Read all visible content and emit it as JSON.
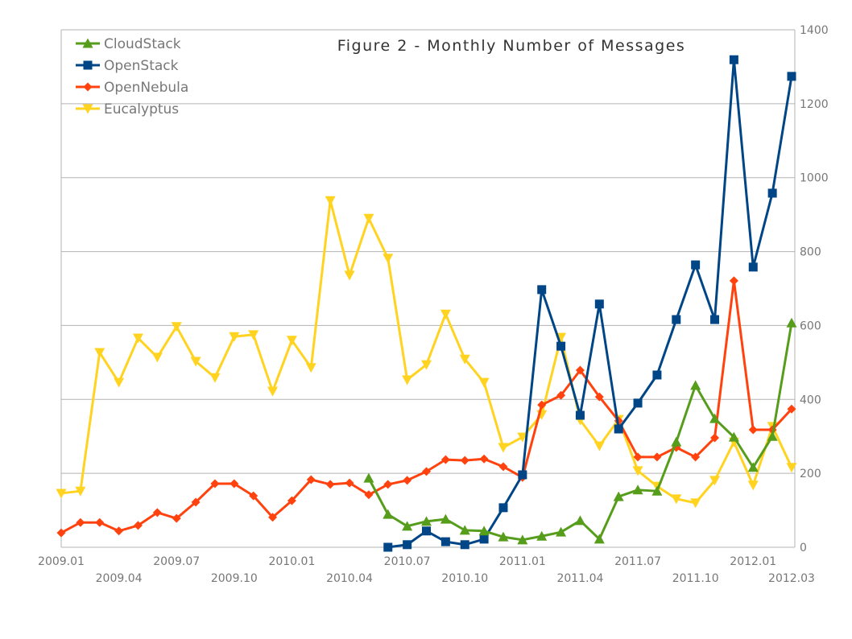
{
  "chart_data": {
    "type": "line",
    "title": "Figure 2 - Monthly Number of Messages",
    "xlabel": "",
    "ylabel": "",
    "ylim": [
      0,
      1400
    ],
    "yticks": [
      0,
      200,
      400,
      600,
      800,
      1000,
      1200,
      1400
    ],
    "y_axis_side": "right",
    "grid": true,
    "legend_position": "top-left",
    "x": [
      "2009.01",
      "2009.02",
      "2009.03",
      "2009.04",
      "2009.05",
      "2009.06",
      "2009.07",
      "2009.08",
      "2009.09",
      "2009.10",
      "2009.11",
      "2009.12",
      "2010.01",
      "2010.02",
      "2010.03",
      "2010.04",
      "2010.05",
      "2010.06",
      "2010.07",
      "2010.08",
      "2010.09",
      "2010.10",
      "2010.11",
      "2010.12",
      "2011.01",
      "2011.02",
      "2011.03",
      "2011.04",
      "2011.05",
      "2011.06",
      "2011.07",
      "2011.08",
      "2011.09",
      "2011.10",
      "2011.11",
      "2011.12",
      "2012.01",
      "2012.02",
      "2012.03"
    ],
    "xtick_labels": [
      "2009.01",
      "2009.04",
      "2009.07",
      "2009.10",
      "2010.01",
      "2010.04",
      "2010.07",
      "2010.10",
      "2011.01",
      "2011.04",
      "2011.07",
      "2011.10",
      "2012.01",
      "2012.03"
    ],
    "series": [
      {
        "name": "CloudStack",
        "color": "#579d1c",
        "marker": "triangle-up",
        "values": [
          null,
          null,
          null,
          null,
          null,
          null,
          null,
          null,
          null,
          null,
          null,
          null,
          null,
          null,
          null,
          null,
          187,
          89,
          57,
          70,
          76,
          46,
          44,
          28,
          20,
          30,
          41,
          72,
          22,
          137,
          155,
          152,
          285,
          438,
          348,
          298,
          216,
          300,
          607
        ]
      },
      {
        "name": "OpenStack",
        "color": "#004586",
        "marker": "square",
        "values": [
          null,
          null,
          null,
          null,
          null,
          null,
          null,
          null,
          null,
          null,
          null,
          null,
          null,
          null,
          null,
          null,
          null,
          0,
          7,
          44,
          15,
          7,
          22,
          107,
          196,
          697,
          544,
          357,
          658,
          320,
          390,
          466,
          616,
          764,
          616,
          1319,
          758,
          958,
          1274
        ]
      },
      {
        "name": "OpenNebula",
        "color": "#ff420e",
        "marker": "diamond",
        "values": [
          39,
          67,
          67,
          44,
          59,
          94,
          78,
          122,
          172,
          172,
          139,
          81,
          126,
          183,
          170,
          174,
          142,
          170,
          181,
          205,
          237,
          235,
          239,
          218,
          189,
          385,
          411,
          479,
          407,
          342,
          244,
          244,
          270,
          244,
          296,
          721,
          318,
          318,
          374
        ]
      },
      {
        "name": "Eucalyptus",
        "color": "#ffd320",
        "marker": "triangle-down",
        "values": [
          146,
          152,
          527,
          446,
          566,
          514,
          597,
          503,
          459,
          570,
          575,
          422,
          560,
          486,
          938,
          736,
          890,
          782,
          453,
          494,
          631,
          509,
          446,
          270,
          298,
          359,
          568,
          344,
          274,
          346,
          207,
          165,
          131,
          120,
          181,
          285,
          168,
          327,
          216
        ]
      }
    ]
  }
}
